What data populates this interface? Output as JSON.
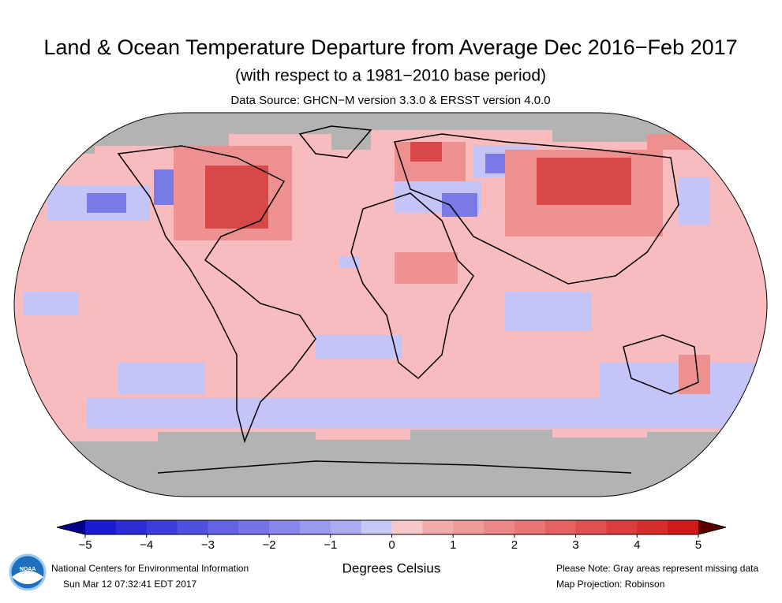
{
  "header": {
    "title": "Land & Ocean Temperature Departure from Average Dec 2016−Feb 2017",
    "subtitle": "(with respect to a 1981−2010 base period)",
    "source": "Data Source: GHCN−M version 3.3.0 & ERSST version 4.0.0"
  },
  "colorbar": {
    "range": [
      -5,
      5
    ],
    "ticks": [
      {
        "value": -5,
        "label": "−5"
      },
      {
        "value": -4,
        "label": "−4"
      },
      {
        "value": -3,
        "label": "−3"
      },
      {
        "value": -2,
        "label": "−2"
      },
      {
        "value": -1,
        "label": "−1"
      },
      0,
      1,
      2,
      3,
      4,
      5
    ],
    "colors": [
      "#1a1ad0",
      "#2c2cd6",
      "#3d3ddb",
      "#5050e0",
      "#6262e4",
      "#7474e8",
      "#8686ec",
      "#9999f0",
      "#ababf4",
      "#c8c8f8",
      "#f8c8c8",
      "#f4abab",
      "#f09a9a",
      "#ec8888",
      "#e87676",
      "#e46262",
      "#e05050",
      "#db3d3d",
      "#d62c2c",
      "#d01a1a"
    ],
    "under_color": "#00008b",
    "over_color": "#5a0000",
    "label": "Degrees Celsius"
  },
  "logo": "NOAA",
  "footer": {
    "org": "National Centers for Environmental Information",
    "timestamp": "Sun Mar 12 07:32:41 EDT 2017",
    "note": "Please Note: Gray areas represent missing data",
    "projection": "Map Projection: Robinson"
  }
}
